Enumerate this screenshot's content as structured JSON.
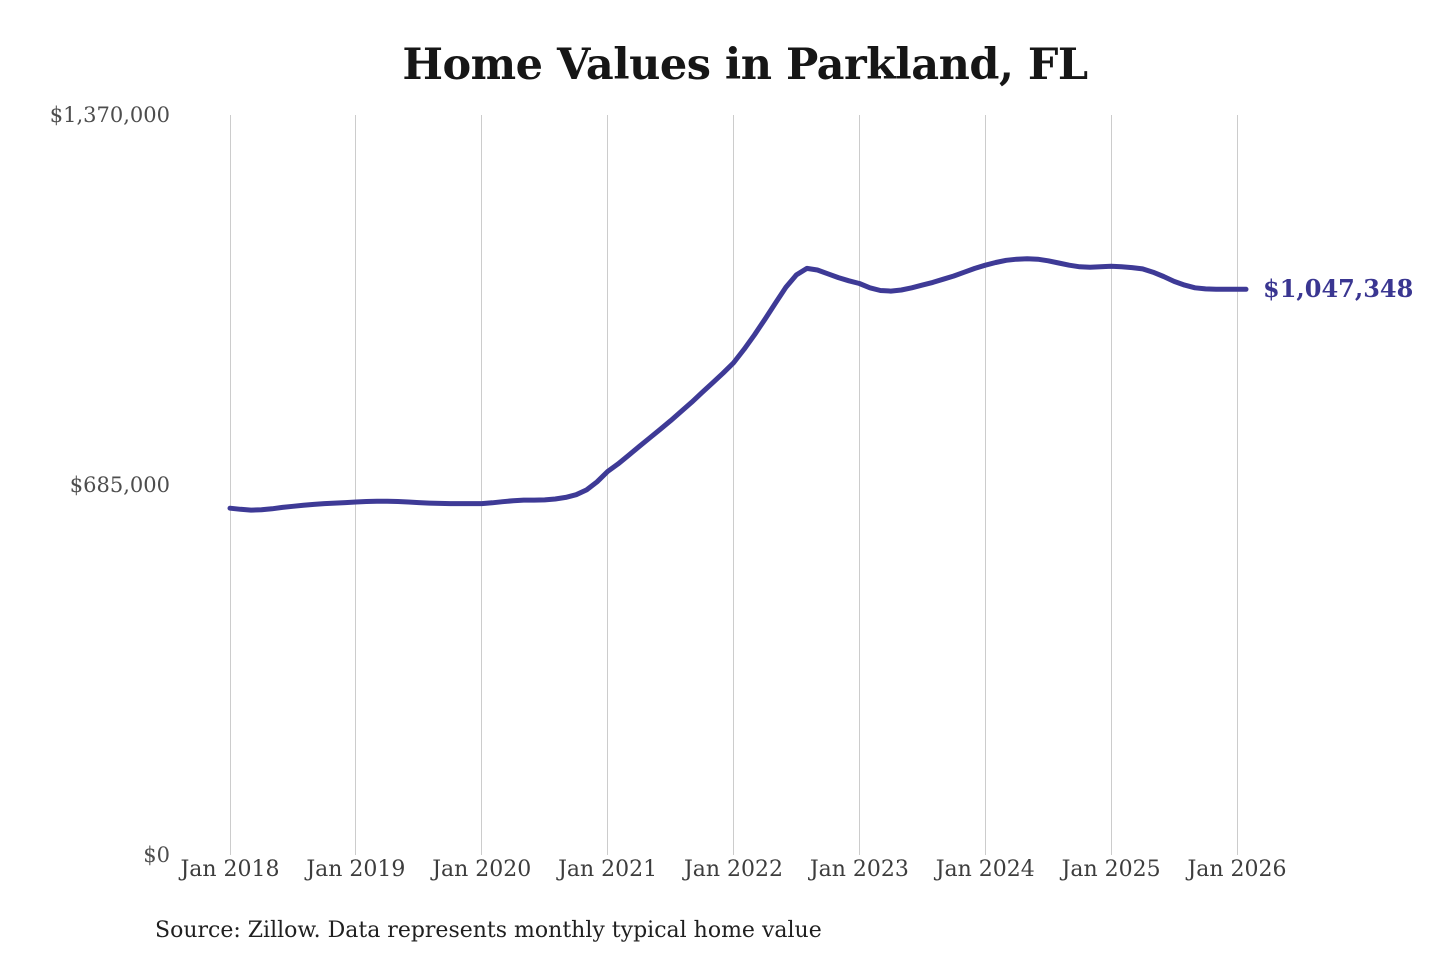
{
  "title": "Home Values in Parkland, FL",
  "source_note": "Source: Zillow. Data represents monthly typical home value",
  "colors": {
    "line": "#3e3a96",
    "end_label": "#3a3691",
    "grid": "#cccccc",
    "title": "#161616",
    "x_tick": "#3d3d3d",
    "y_tick": "#4d4d4d",
    "background": "#ffffff"
  },
  "chart_data": {
    "type": "line",
    "title": "Home Values in Parkland, FL",
    "xlabel": "",
    "ylabel": "",
    "x_start": "Jan 2018",
    "x_interval": "1 month",
    "x_ticks": [
      "Jan 2018",
      "Jan 2019",
      "Jan 2020",
      "Jan 2021",
      "Jan 2022",
      "Jan 2023",
      "Jan 2024",
      "Jan 2025",
      "Jan 2026"
    ],
    "y_ticks": [
      {
        "value": 0,
        "label": "$0"
      },
      {
        "value": 685000,
        "label": "$685,000"
      },
      {
        "value": 1370000,
        "label": "$1,370,000"
      }
    ],
    "ylim": [
      0,
      1370000
    ],
    "grid": "vertical-only",
    "legend": "none",
    "latest_value": 1047348,
    "latest_label": "$1,047,348",
    "values": [
      642000,
      640000,
      638500,
      639000,
      641000,
      643500,
      645500,
      647500,
      649000,
      650500,
      651500,
      652500,
      653500,
      654500,
      655000,
      655000,
      654500,
      653500,
      652500,
      651500,
      651000,
      650500,
      650500,
      650500,
      650500,
      652000,
      654000,
      656000,
      657000,
      657000,
      657500,
      659000,
      662000,
      667000,
      676000,
      691000,
      710000,
      724000,
      740000,
      756000,
      772000,
      788000,
      804000,
      821000,
      838000,
      856000,
      874000,
      892000,
      911000,
      936000,
      963000,
      992000,
      1022000,
      1051000,
      1074000,
      1086000,
      1083000,
      1076000,
      1069000,
      1063000,
      1058000,
      1050000,
      1045000,
      1044000,
      1046000,
      1050000,
      1055000,
      1060000,
      1066000,
      1072000,
      1079000,
      1086000,
      1092000,
      1097000,
      1101000,
      1103000,
      1104000,
      1103000,
      1100000,
      1096000,
      1092000,
      1089000,
      1088000,
      1089000,
      1090000,
      1089000,
      1087500,
      1085000,
      1079000,
      1071000,
      1062000,
      1055000,
      1050000,
      1048000,
      1047500,
      1047400,
      1047348
    ]
  }
}
